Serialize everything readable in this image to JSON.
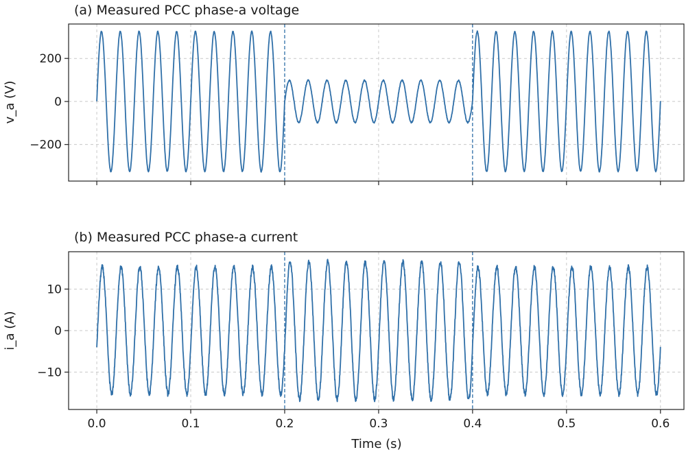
{
  "chart_data": [
    {
      "type": "line",
      "title": "(a) Measured PCC phase-a voltage",
      "xlabel": "",
      "ylabel": "v_a (V)",
      "xlim": [
        -0.03,
        0.625
      ],
      "ylim": [
        -370,
        360
      ],
      "xticks": [
        0.0,
        0.1,
        0.2,
        0.3,
        0.4,
        0.5,
        0.6
      ],
      "xtick_labels": [],
      "yticks": [
        -200,
        0,
        200
      ],
      "ytick_labels": [
        "−200",
        "0",
        "200"
      ],
      "grid": true,
      "event_lines_x": [
        0.2,
        0.4
      ],
      "series": [
        {
          "name": "v_a",
          "function": "sine",
          "frequency_hz": 50,
          "phase_deg": 0,
          "x_start": 0.0,
          "x_end": 0.6,
          "segments": [
            {
              "from": 0.0,
              "to": 0.2,
              "amplitude": 325
            },
            {
              "from": 0.2,
              "to": 0.4,
              "amplitude": 98
            },
            {
              "from": 0.4,
              "to": 0.6,
              "amplitude": 325
            }
          ],
          "noise": 3
        }
      ]
    },
    {
      "type": "line",
      "title": "(b) Measured PCC phase-a current",
      "xlabel": "Time (s)",
      "ylabel": "i_a (A)",
      "xlim": [
        -0.03,
        0.625
      ],
      "ylim": [
        -19,
        19
      ],
      "xticks": [
        0.0,
        0.1,
        0.2,
        0.3,
        0.4,
        0.5,
        0.6
      ],
      "xtick_labels": [
        "0.0",
        "0.1",
        "0.2",
        "0.3",
        "0.4",
        "0.5",
        "0.6"
      ],
      "yticks": [
        -10,
        0,
        10
      ],
      "ytick_labels": [
        "−10",
        "0",
        "10"
      ],
      "grid": true,
      "event_lines_x": [
        0.2,
        0.4
      ],
      "series": [
        {
          "name": "i_a",
          "function": "sine",
          "frequency_hz": 50,
          "phase_deg": -15,
          "x_start": 0.0,
          "x_end": 0.6,
          "segments": [
            {
              "from": 0.0,
              "to": 0.2,
              "amplitude": 15.3
            },
            {
              "from": 0.2,
              "to": 0.4,
              "amplitude": 16.6
            },
            {
              "from": 0.4,
              "to": 0.6,
              "amplitude": 15.3
            }
          ],
          "noise": 0.6
        }
      ]
    }
  ],
  "colors": {
    "series": "#2f6fa8",
    "event_line": "#2f6fa8",
    "grid": "#c8c8c8",
    "axes": "#222222"
  }
}
